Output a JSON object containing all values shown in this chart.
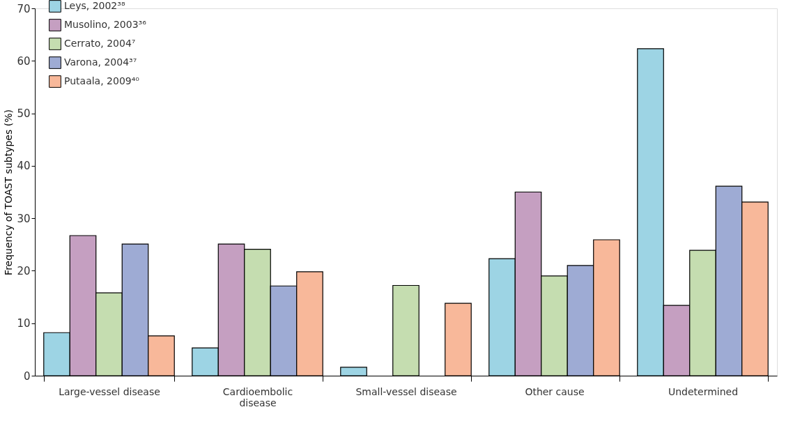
{
  "chart_data": {
    "type": "bar",
    "ylabel": "Frequency of TOAST subtypes (%)",
    "categories": [
      "Large-vessel disease",
      "Cardioembolic disease",
      "Small-vessel disease",
      "Other cause",
      "Undetermined"
    ],
    "series": [
      {
        "name": "Leys, 2002³⁸",
        "color": "#9dd4e4",
        "values": [
          8.2,
          5.3,
          1.6,
          22.3,
          62.3
        ]
      },
      {
        "name": "Musolino, 2003³⁶",
        "color": "#c59fc1",
        "values": [
          26.7,
          25.1,
          null,
          35.0,
          13.4
        ]
      },
      {
        "name": "Cerrato, 2004⁷",
        "color": "#c5ddb0",
        "values": [
          15.8,
          24.1,
          17.2,
          19.0,
          23.9
        ]
      },
      {
        "name": "Varona, 2004³⁷",
        "color": "#9eabd4",
        "values": [
          25.1,
          17.1,
          null,
          21.0,
          36.1
        ]
      },
      {
        "name": "Putaala, 2009⁴⁰",
        "color": "#f8b89a",
        "values": [
          7.6,
          19.8,
          13.8,
          25.9,
          33.1
        ]
      }
    ],
    "ylim": [
      0,
      70
    ],
    "yticks": [
      0,
      10,
      20,
      30,
      40,
      50,
      60,
      70
    ],
    "grid": false,
    "legend": "top left"
  }
}
